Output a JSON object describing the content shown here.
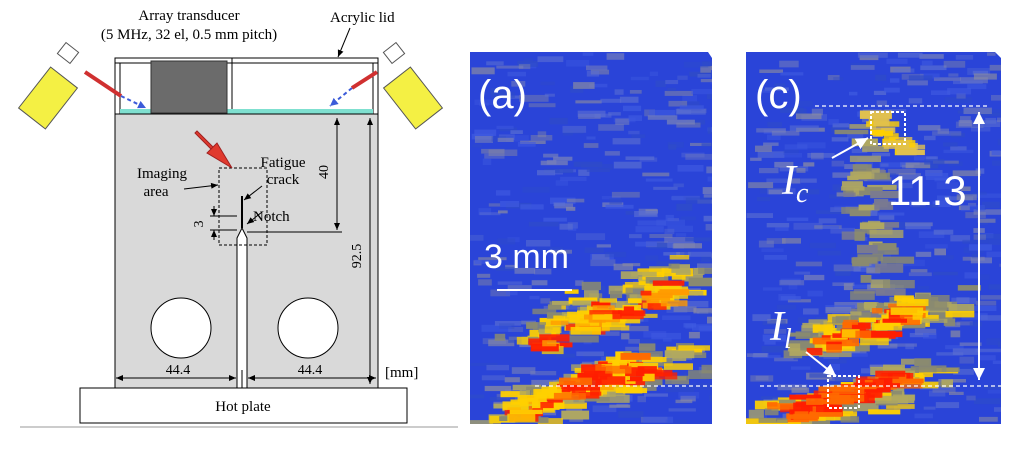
{
  "schematic": {
    "transducer_title": "Array transducer",
    "transducer_spec": "(5 MHz, 32 el, 0.5 mm pitch)",
    "acrylic_lid": "Acrylic lid",
    "fatigue_label_1": "Fatigue",
    "fatigue_label_2": "crack",
    "imaging_label_1": "Imaging",
    "imaging_label_2": "area",
    "notch_label": "Notch",
    "dim_40": "40",
    "dim_3": "3",
    "dim_92_5": "92.5",
    "dim_left": "44.4",
    "dim_right": "44.4",
    "units": "[mm]",
    "hot_plate": "Hot plate"
  },
  "panel_a": {
    "label": "(a)",
    "scale_text": "3 mm"
  },
  "panel_c": {
    "label": "(c)",
    "ic_base": "I",
    "ic_sub": "c",
    "il_base": "I",
    "il_sub": "l",
    "distance": "11.3"
  },
  "colors": {
    "image_background": "#2a44d8",
    "high_intensity": "#ff1e00",
    "mid_intensity": "#ffd000",
    "specimen_fill": "#d9d9d9",
    "transducer_fill": "#6b6b6b",
    "lamp_fill": "#f4f044",
    "water_line": "#7fe0d0"
  }
}
